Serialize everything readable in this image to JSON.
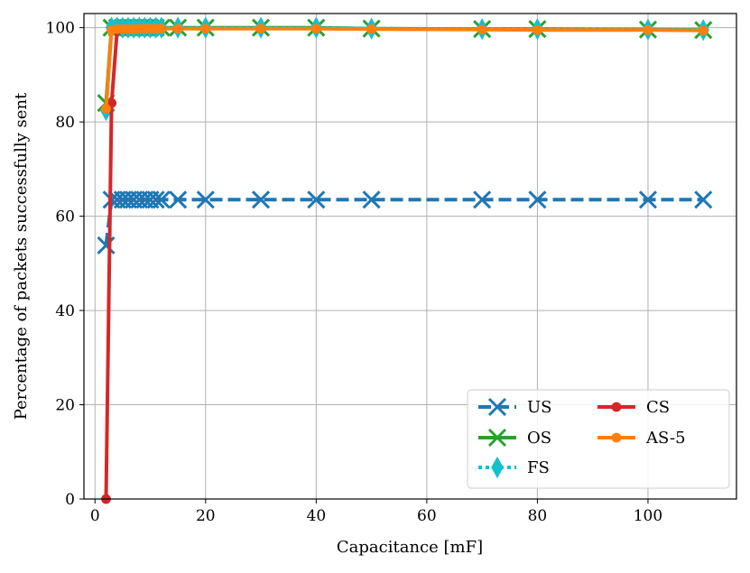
{
  "chart_data": {
    "type": "line",
    "xlabel": "Capacitance [mF]",
    "ylabel": "Percentage of packets successfully sent",
    "xlim": [
      -2,
      116
    ],
    "ylim": [
      0,
      103
    ],
    "xticks": [
      0,
      20,
      40,
      60,
      80,
      100
    ],
    "yticks": [
      0,
      20,
      40,
      60,
      80,
      100
    ],
    "grid": true,
    "legend": {
      "placement": "lower-right",
      "columns": 2
    },
    "series": [
      {
        "name": "US",
        "color": "#1f77b4",
        "linestyle": "dashed",
        "marker": "x",
        "x": [
          2,
          3,
          4,
          5,
          6,
          7,
          8,
          9,
          10,
          11,
          12,
          15,
          20,
          30,
          40,
          50,
          70,
          80,
          100,
          110
        ],
        "y": [
          53.8,
          63.5,
          63.5,
          63.5,
          63.5,
          63.5,
          63.5,
          63.5,
          63.5,
          63.5,
          63.5,
          63.5,
          63.5,
          63.5,
          63.5,
          63.5,
          63.5,
          63.5,
          63.5,
          63.5
        ]
      },
      {
        "name": "OS",
        "color": "#2ca02c",
        "linestyle": "solid",
        "marker": "x",
        "x": [
          2,
          3,
          4,
          5,
          6,
          7,
          8,
          9,
          10,
          11,
          12,
          15,
          20,
          30,
          40,
          50,
          70,
          80,
          100,
          110
        ],
        "y": [
          84,
          100,
          100,
          100,
          100,
          100,
          100,
          100,
          100,
          100,
          100,
          100,
          100,
          100,
          100,
          99.8,
          99.7,
          99.7,
          99.6,
          99.5
        ]
      },
      {
        "name": "FS",
        "color": "#17becf",
        "linestyle": "dotted",
        "marker": "diamond",
        "x": [
          2,
          3,
          4,
          5,
          6,
          7,
          8,
          9,
          10,
          11,
          12,
          15,
          20,
          30,
          40,
          50,
          70,
          80,
          100,
          110
        ],
        "y": [
          82.5,
          100,
          100,
          100,
          100,
          100,
          100,
          100,
          100,
          100,
          100,
          100,
          100,
          100,
          100,
          99.8,
          99.7,
          99.7,
          99.6,
          99.5
        ]
      },
      {
        "name": "CS",
        "color": "#d62728",
        "linestyle": "solid",
        "marker": "circle",
        "x": [
          2,
          3,
          4
        ],
        "y": [
          0,
          84,
          99.5
        ]
      },
      {
        "name": "AS-5",
        "color": "#ff7f0e",
        "linestyle": "solid",
        "marker": "circle",
        "x": [
          2,
          3,
          4,
          5,
          6,
          7,
          8,
          9,
          10,
          11,
          12,
          15,
          20,
          30,
          40,
          50,
          70,
          80,
          100,
          110
        ],
        "y": [
          82.8,
          99.5,
          99.7,
          99.7,
          99.7,
          99.7,
          99.8,
          99.8,
          99.8,
          99.8,
          99.8,
          99.8,
          99.8,
          99.8,
          99.8,
          99.7,
          99.6,
          99.5,
          99.5,
          99.4
        ]
      }
    ]
  }
}
